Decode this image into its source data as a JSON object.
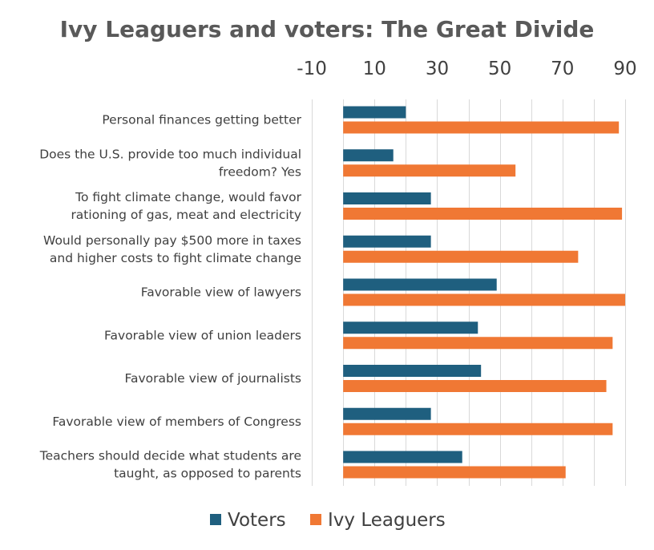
{
  "chart_data": {
    "type": "bar",
    "orientation": "horizontal",
    "title": "Ivy Leaguers and voters: The Great Divide",
    "xlabel": "",
    "ylabel": "",
    "xlim": [
      -20,
      90
    ],
    "x_ticks": [
      "-10",
      "10",
      "30",
      "50",
      "70",
      "90"
    ],
    "categories": [
      [
        "Personal finances getting better"
      ],
      [
        "Does the U.S. provide too much individual",
        "freedom? Yes"
      ],
      [
        "To fight climate change, would favor",
        "rationing of gas, meat and electricity"
      ],
      [
        "Would personally pay $500 more in taxes",
        "and higher costs to fight climate change"
      ],
      [
        "Favorable view of lawyers"
      ],
      [
        "Favorable view of union leaders"
      ],
      [
        "Favorable view of journalists"
      ],
      [
        "Favorable view of members of Congress"
      ],
      [
        "Teachers should decide what students are",
        "taught, as opposed to parents"
      ]
    ],
    "series": [
      {
        "name": "Voters",
        "color": "#1f5f7f",
        "values": [
          20,
          16,
          28,
          28,
          49,
          43,
          44,
          28,
          38
        ]
      },
      {
        "name": "Ivy Leaguers",
        "color": "#f07834",
        "values": [
          88,
          55,
          89,
          75,
          90,
          86,
          84,
          86,
          71
        ]
      }
    ],
    "legend": "bottom",
    "grid": true
  }
}
